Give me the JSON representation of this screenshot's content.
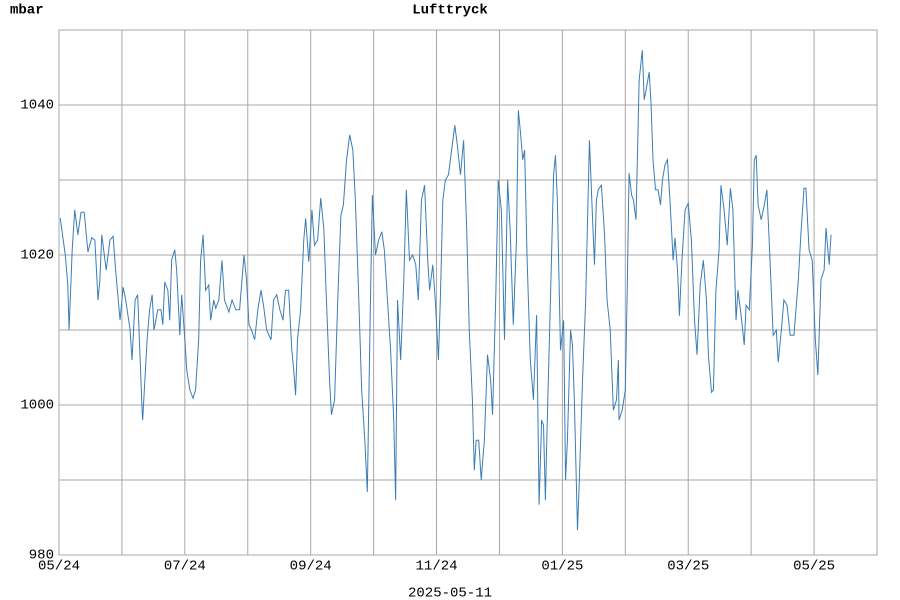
{
  "chart_data": {
    "type": "line",
    "title": "Lufttryck",
    "ylabel": "mbar",
    "xlabel": "2025-05-11",
    "color": "#3a7db5",
    "title_color": "#3a7db5",
    "grid": true,
    "xlim": [
      0,
      13
    ],
    "ylim": [
      980,
      1050
    ],
    "xticks": [
      {
        "value": 0,
        "label": "05/24"
      },
      {
        "value": 2,
        "label": "07/24"
      },
      {
        "value": 4,
        "label": "09/24"
      },
      {
        "value": 6,
        "label": "11/24"
      },
      {
        "value": 8,
        "label": "01/25"
      },
      {
        "value": 10,
        "label": "03/25"
      },
      {
        "value": 12,
        "label": "05/25"
      }
    ],
    "x_minor_ticks": [
      1,
      3,
      5,
      7,
      9,
      11
    ],
    "yticks": [
      980,
      1000,
      1020,
      1040
    ],
    "y_minor_ticks": [
      990,
      1010,
      1030,
      1050
    ],
    "x": [
      0.02,
      0.1,
      0.14,
      0.16,
      0.21,
      0.25,
      0.3,
      0.35,
      0.4,
      0.46,
      0.52,
      0.57,
      0.62,
      0.65,
      0.68,
      0.75,
      0.81,
      0.86,
      0.9,
      0.97,
      1.02,
      1.06,
      1.13,
      1.16,
      1.21,
      1.25,
      1.29,
      1.32,
      1.33,
      1.4,
      1.44,
      1.48,
      1.51,
      1.57,
      1.62,
      1.65,
      1.68,
      1.73,
      1.76,
      1.79,
      1.84,
      1.87,
      1.92,
      1.95,
      2.0,
      2.03,
      2.08,
      2.13,
      2.17,
      2.22,
      2.25,
      2.29,
      2.33,
      2.38,
      2.41,
      2.46,
      2.49,
      2.54,
      2.59,
      2.63,
      2.7,
      2.75,
      2.81,
      2.87,
      2.94,
      2.98,
      3.02,
      3.06,
      3.11,
      3.16,
      3.21,
      3.25,
      3.3,
      3.37,
      3.41,
      3.46,
      3.51,
      3.56,
      3.6,
      3.65,
      3.7,
      3.73,
      3.76,
      3.79,
      3.84,
      3.89,
      3.92,
      3.97,
      4.02,
      4.06,
      4.11,
      4.16,
      4.21,
      4.25,
      4.3,
      4.33,
      4.38,
      4.43,
      4.48,
      4.52,
      4.57,
      4.62,
      4.67,
      4.71,
      4.76,
      4.81,
      4.86,
      4.9,
      4.95,
      4.98,
      5.03,
      5.08,
      5.13,
      5.17,
      5.22,
      5.27,
      5.32,
      5.35,
      5.38,
      5.43,
      5.48,
      5.52,
      5.57,
      5.62,
      5.67,
      5.71,
      5.76,
      5.81,
      5.86,
      5.89,
      5.94,
      5.98,
      6.03,
      6.06,
      6.1,
      6.14,
      6.19,
      6.24,
      6.29,
      6.33,
      6.38,
      6.43,
      6.48,
      6.52,
      6.57,
      6.6,
      6.63,
      6.67,
      6.71,
      6.76,
      6.81,
      6.86,
      6.89,
      6.94,
      6.98,
      7.03,
      7.08,
      7.13,
      7.17,
      7.22,
      7.27,
      7.3,
      7.33,
      7.37,
      7.4,
      7.44,
      7.49,
      7.54,
      7.59,
      7.63,
      7.67,
      7.7,
      7.73,
      7.76,
      7.81,
      7.86,
      7.89,
      7.92,
      7.97,
      8.02,
      8.05,
      8.08,
      8.13,
      8.16,
      8.19,
      8.24,
      8.27,
      8.32,
      8.37,
      8.43,
      8.48,
      8.51,
      8.54,
      8.57,
      8.62,
      8.67,
      8.71,
      8.76,
      8.81,
      8.86,
      8.89,
      8.9,
      8.95,
      9.0,
      9.03,
      9.06,
      9.1,
      9.13,
      9.17,
      9.22,
      9.27,
      9.3,
      9.33,
      9.38,
      9.41,
      9.44,
      9.48,
      9.52,
      9.56,
      9.59,
      9.63,
      9.67,
      9.71,
      9.76,
      9.79,
      9.83,
      9.86,
      9.9,
      9.95,
      10.0,
      10.05,
      10.1,
      10.14,
      10.19,
      10.24,
      10.29,
      10.32,
      10.37,
      10.4,
      10.44,
      10.49,
      10.52,
      10.57,
      10.62,
      10.67,
      10.71,
      10.76,
      10.79,
      10.84,
      10.89,
      10.92,
      10.97,
      11.02,
      11.05,
      11.08,
      11.11,
      11.16,
      11.21,
      11.25,
      11.3,
      11.35,
      11.4,
      11.43,
      11.48,
      11.52,
      11.57,
      11.62,
      11.68,
      11.75,
      11.79,
      11.84,
      11.87,
      11.92,
      11.97,
      12.02,
      12.06,
      12.11,
      12.16,
      12.19,
      12.24,
      12.27
    ],
    "values": [
      1024.9,
      1020,
      1016,
      1010,
      1020.7,
      1026,
      1022.7,
      1025.7,
      1025.7,
      1020.4,
      1022.3,
      1022,
      1014,
      1016.7,
      1022.7,
      1018,
      1022,
      1022.5,
      1018,
      1011.3,
      1015.7,
      1014,
      1010,
      1006,
      1014,
      1014.7,
      1006,
      999.3,
      998,
      1008.7,
      1012.7,
      1014.7,
      1010,
      1012.7,
      1012.7,
      1010.7,
      1016.4,
      1015.3,
      1011.3,
      1019.3,
      1020.7,
      1018,
      1009.3,
      1014.7,
      1008.7,
      1004.7,
      1002,
      1000.9,
      1002,
      1008.7,
      1019.3,
      1022.7,
      1015.3,
      1016,
      1011.3,
      1014,
      1012.9,
      1014,
      1019.3,
      1014,
      1012.4,
      1014,
      1012.7,
      1012.7,
      1020,
      1016.7,
      1010.7,
      1010,
      1008.7,
      1012.7,
      1015.3,
      1013.3,
      1010,
      1008.7,
      1014,
      1014.7,
      1012.7,
      1011.3,
      1015.3,
      1015.3,
      1007.3,
      1004.7,
      1001.3,
      1008.7,
      1012.7,
      1022,
      1024.9,
      1019.1,
      1026,
      1021.3,
      1022,
      1027.6,
      1023.3,
      1014,
      1003.3,
      998.7,
      1000.7,
      1014,
      1025.3,
      1026.7,
      1032.7,
      1036,
      1034,
      1027.3,
      1015.3,
      1002,
      995.3,
      988.4,
      1014,
      1028,
      1020,
      1022,
      1023.1,
      1020.7,
      1014,
      1007.3,
      998,
      987.3,
      1014,
      1006,
      1016.7,
      1028.7,
      1019.3,
      1020,
      1018.7,
      1014,
      1027.3,
      1029.3,
      1019.3,
      1015.3,
      1018.7,
      1014,
      1006,
      1014,
      1027.3,
      1030,
      1030.7,
      1034,
      1037.3,
      1034.7,
      1030.7,
      1035.3,
      1023.3,
      1010,
      1000.7,
      991.3,
      995.3,
      995.3,
      990,
      995.3,
      1006.7,
      1003.3,
      998.7,
      1014,
      1030,
      1026,
      1008.7,
      1030,
      1023.3,
      1010.7,
      1022,
      1039.3,
      1036.7,
      1032.7,
      1034,
      1019.3,
      1006,
      1000.7,
      1012,
      986.7,
      998,
      997.3,
      987.3,
      998,
      1014,
      1030.7,
      1033.3,
      1027.3,
      1007.3,
      1011.3,
      990,
      995.3,
      1010,
      1008,
      1000.7,
      983.3,
      990,
      1003.3,
      1014,
      1035.3,
      1024.7,
      1018.7,
      1027.3,
      1028.7,
      1029.3,
      1022.7,
      1014,
      1010,
      999.3,
      1000.7,
      1006,
      998,
      999.3,
      1002,
      1015.3,
      1030.9,
      1028,
      1027.3,
      1024.7,
      1043.3,
      1047.3,
      1040.7,
      1042,
      1044.4,
      1040,
      1032.7,
      1028.7,
      1028.7,
      1026.7,
      1030,
      1032,
      1032.7,
      1027.3,
      1019.3,
      1022.3,
      1018,
      1011.9,
      1019.3,
      1026,
      1026.9,
      1022,
      1011.3,
      1006.7,
      1016,
      1019.3,
      1014,
      1006.7,
      1001.7,
      1002,
      1015.3,
      1020.7,
      1029.3,
      1026,
      1021.3,
      1028.9,
      1026,
      1011.3,
      1015.3,
      1012,
      1008,
      1013.3,
      1012.7,
      1021.3,
      1032.7,
      1033.3,
      1026.7,
      1024.7,
      1026.7,
      1028.7,
      1019.3,
      1009.3,
      1010,
      1005.7,
      1010,
      1014,
      1013.3,
      1009.3,
      1009.3,
      1016.7,
      1022.7,
      1028.9,
      1028.9,
      1020.7,
      1019.3,
      1008.7,
      1004,
      1016.7,
      1018,
      1023.6,
      1018.7,
      1022.7
    ]
  }
}
